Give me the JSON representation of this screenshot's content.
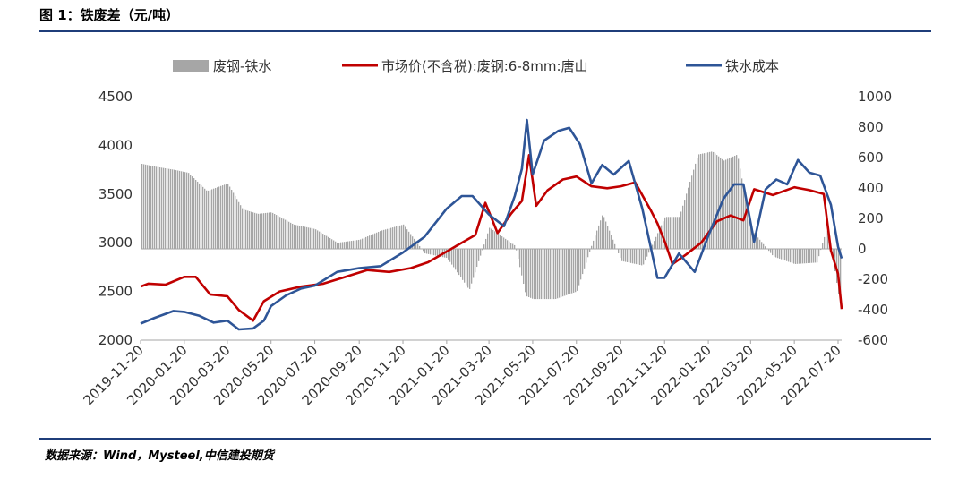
{
  "header": {
    "title": "图 1：铁废差（元/吨）"
  },
  "footer": {
    "source": "数据来源：Wind，Mysteel,中信建投期货"
  },
  "chart_data": {
    "type": "line+bar",
    "title": "",
    "left_axis": {
      "min": 2000,
      "max": 4500,
      "ticks": [
        "2000",
        "2500",
        "3000",
        "3500",
        "4000",
        "4500"
      ]
    },
    "right_axis": {
      "min": -600,
      "max": 1000,
      "ticks": [
        "-600",
        "-400",
        "-200",
        "0",
        "200",
        "400",
        "600",
        "800",
        "1000"
      ]
    },
    "x_ticks": [
      "2019-11-20",
      "2020-01-20",
      "2020-03-20",
      "2020-05-20",
      "2020-07-20",
      "2020-09-20",
      "2020-11-20",
      "2021-01-20",
      "2021-03-20",
      "2021-05-20",
      "2021-07-20",
      "2021-09-20",
      "2021-11-20",
      "2022-01-20",
      "2022-03-20",
      "2022-05-20",
      "2022-07-20"
    ],
    "x_range": [
      "2019-11-20",
      "2022-07-25"
    ],
    "legend": [
      {
        "name": "废钢-铁水",
        "kind": "bar",
        "color": "#a6a6a6"
      },
      {
        "name": "市场价(不含税):废钢:6-8mm:唐山",
        "kind": "line",
        "color": "#c00000"
      },
      {
        "name": "铁水成本",
        "kind": "line",
        "color": "#2e5597"
      }
    ],
    "series": [
      {
        "name": "废钢-铁水",
        "axis": "right",
        "x": [
          "2019-11-20",
          "2019-12-10",
          "2020-01-05",
          "2020-01-25",
          "2020-02-20",
          "2020-03-20",
          "2020-04-10",
          "2020-05-01",
          "2020-05-20",
          "2020-06-20",
          "2020-07-20",
          "2020-08-20",
          "2020-09-20",
          "2020-10-20",
          "2020-11-20",
          "2020-12-20",
          "2021-01-20",
          "2021-02-20",
          "2021-03-20",
          "2021-04-10",
          "2021-04-25",
          "2021-05-10",
          "2021-05-20",
          "2021-06-20",
          "2021-07-20",
          "2021-08-10",
          "2021-08-25",
          "2021-09-20",
          "2021-10-20",
          "2021-11-20",
          "2021-12-10",
          "2022-01-05",
          "2022-01-25",
          "2022-02-10",
          "2022-03-01",
          "2022-03-20",
          "2022-04-20",
          "2022-05-20",
          "2022-06-20",
          "2022-07-05",
          "2022-07-20",
          "2022-07-25"
        ],
        "values": [
          560,
          540,
          520,
          500,
          380,
          430,
          260,
          230,
          240,
          160,
          130,
          40,
          60,
          120,
          160,
          -30,
          -60,
          -270,
          140,
          70,
          20,
          -310,
          -330,
          -330,
          -280,
          30,
          230,
          -80,
          -110,
          210,
          210,
          620,
          640,
          580,
          620,
          130,
          -50,
          -100,
          -90,
          160,
          -300,
          -420
        ]
      },
      {
        "name": "市场价(不含税):废钢:6-8mm:唐山",
        "axis": "left",
        "x": [
          "2019-11-20",
          "2019-12-01",
          "2019-12-25",
          "2020-01-20",
          "2020-02-05",
          "2020-02-25",
          "2020-03-20",
          "2020-04-05",
          "2020-04-25",
          "2020-05-10",
          "2020-06-01",
          "2020-07-01",
          "2020-08-01",
          "2020-09-01",
          "2020-10-01",
          "2020-11-01",
          "2020-12-01",
          "2020-12-25",
          "2021-01-20",
          "2021-02-10",
          "2021-03-01",
          "2021-03-15",
          "2021-04-01",
          "2021-04-20",
          "2021-05-05",
          "2021-05-15",
          "2021-05-25",
          "2021-06-10",
          "2021-07-01",
          "2021-07-20",
          "2021-08-10",
          "2021-09-01",
          "2021-09-20",
          "2021-10-10",
          "2021-11-01",
          "2021-11-10",
          "2021-11-20",
          "2021-12-01",
          "2021-12-20",
          "2022-01-10",
          "2022-02-01",
          "2022-02-20",
          "2022-03-10",
          "2022-03-25",
          "2022-04-20",
          "2022-05-20",
          "2022-06-10",
          "2022-06-30",
          "2022-07-10",
          "2022-07-20",
          "2022-07-25"
        ],
        "values": [
          2550,
          2580,
          2570,
          2650,
          2650,
          2470,
          2450,
          2310,
          2200,
          2400,
          2500,
          2550,
          2580,
          2650,
          2720,
          2700,
          2740,
          2800,
          2910,
          3000,
          3080,
          3410,
          3100,
          3300,
          3430,
          3900,
          3380,
          3540,
          3650,
          3680,
          3580,
          3560,
          3580,
          3620,
          3330,
          3200,
          3020,
          2780,
          2880,
          3000,
          3220,
          3280,
          3230,
          3550,
          3490,
          3570,
          3540,
          3500,
          2920,
          2680,
          2320
        ]
      },
      {
        "name": "铁水成本",
        "axis": "left",
        "x": [
          "2019-11-20",
          "2019-12-10",
          "2020-01-05",
          "2020-01-20",
          "2020-02-10",
          "2020-03-01",
          "2020-03-20",
          "2020-04-05",
          "2020-04-25",
          "2020-05-10",
          "2020-05-20",
          "2020-06-10",
          "2020-07-01",
          "2020-07-20",
          "2020-08-20",
          "2020-09-20",
          "2020-10-20",
          "2020-11-20",
          "2020-12-20",
          "2021-01-20",
          "2021-02-10",
          "2021-02-25",
          "2021-03-20",
          "2021-04-10",
          "2021-04-25",
          "2021-05-05",
          "2021-05-12",
          "2021-05-20",
          "2021-06-05",
          "2021-06-25",
          "2021-07-10",
          "2021-07-25",
          "2021-08-10",
          "2021-08-25",
          "2021-09-10",
          "2021-10-01",
          "2021-10-20",
          "2021-11-10",
          "2021-11-20",
          "2021-12-10",
          "2022-01-01",
          "2022-01-20",
          "2022-02-10",
          "2022-02-25",
          "2022-03-10",
          "2022-03-25",
          "2022-04-10",
          "2022-04-25",
          "2022-05-10",
          "2022-05-25",
          "2022-06-10",
          "2022-06-25",
          "2022-07-10",
          "2022-07-20",
          "2022-07-25"
        ],
        "values": [
          2170,
          2230,
          2300,
          2290,
          2250,
          2180,
          2200,
          2110,
          2120,
          2200,
          2350,
          2460,
          2530,
          2560,
          2700,
          2740,
          2760,
          2900,
          3060,
          3350,
          3480,
          3480,
          3290,
          3170,
          3480,
          3760,
          4260,
          3700,
          4050,
          4150,
          4180,
          4010,
          3610,
          3800,
          3700,
          3840,
          3350,
          2640,
          2640,
          2890,
          2700,
          3070,
          3450,
          3600,
          3600,
          3010,
          3550,
          3650,
          3600,
          3850,
          3720,
          3690,
          3390,
          2960,
          2840
        ]
      }
    ]
  }
}
